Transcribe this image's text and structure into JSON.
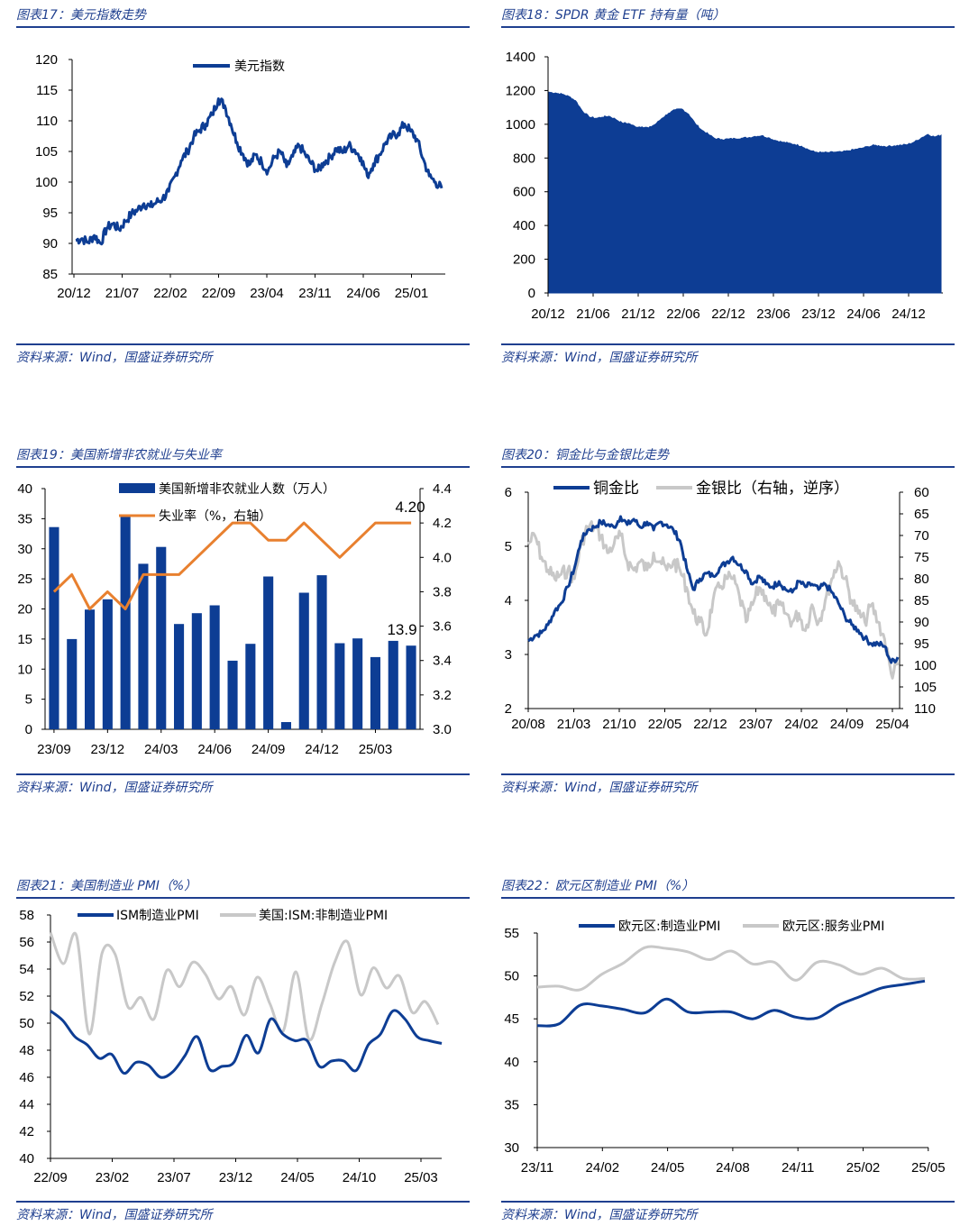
{
  "colors": {
    "brand_blue": "#0d3d94",
    "title_blue": "#1f3f8f",
    "orange": "#e8802f",
    "gray": "#c8c8c8"
  },
  "source_text": "资料来源：Wind，国盛证券研究所",
  "chart_data": [
    {
      "id": "c17",
      "type": "line",
      "title": "图表17：美元指数走势",
      "series": [
        {
          "name": "美元指数",
          "values": [
            90.5,
            90.8,
            90.2,
            91.3,
            90.0,
            92.5,
            93.2,
            92.3,
            93.6,
            94.8,
            95.5,
            96.5,
            96.0,
            96.7,
            97.3,
            98.5,
            101.0,
            103.5,
            105.0,
            107.3,
            108.5,
            109.5,
            111.0,
            113.6,
            112.5,
            109.5,
            106.5,
            104.5,
            102.8,
            104.5,
            103.2,
            101.8,
            104.0,
            105.0,
            102.5,
            104.2,
            106.0,
            104.5,
            103.0,
            101.8,
            103.2,
            104.0,
            105.5,
            104.8,
            106.0,
            105.2,
            104.0,
            101.0,
            103.0,
            104.5,
            106.5,
            107.5,
            108.0,
            109.5,
            108.3,
            107.0,
            103.8,
            101.0,
            100.0,
            99.0
          ]
        }
      ],
      "x_labels": [
        "20/12",
        "21/07",
        "22/02",
        "22/09",
        "23/04",
        "23/11",
        "24/06",
        "25/01"
      ],
      "y_ticks": [
        85,
        90,
        95,
        100,
        105,
        110,
        115,
        120
      ],
      "ylim": [
        85,
        120
      ]
    },
    {
      "id": "c18",
      "type": "area",
      "title": "图表18：SPDR 黄金 ETF 持有量（吨）",
      "series": [
        {
          "name": "SPDR 黄金 ETF 持有量",
          "values": [
            1190,
            1185,
            1178,
            1165,
            1140,
            1080,
            1045,
            1035,
            1042,
            1048,
            1030,
            1008,
            1005,
            985,
            985,
            978,
            1000,
            1035,
            1065,
            1085,
            1090,
            1060,
            1005,
            965,
            940,
            915,
            910,
            912,
            915,
            918,
            920,
            928,
            932,
            920,
            905,
            895,
            888,
            880,
            870,
            850,
            835,
            832,
            832,
            835,
            835,
            842,
            850,
            857,
            868,
            875,
            870,
            868,
            872,
            876,
            880,
            895,
            918,
            940,
            925,
            935
          ]
        }
      ],
      "x_labels": [
        "20/12",
        "21/06",
        "21/12",
        "22/06",
        "22/12",
        "23/06",
        "23/12",
        "24/06",
        "24/12"
      ],
      "y_ticks": [
        0,
        200,
        400,
        600,
        800,
        1000,
        1200,
        1400
      ],
      "ylim": [
        0,
        1400
      ]
    },
    {
      "id": "c19",
      "type": "bar+line",
      "title": "图表19：美国新增非农就业与失业率",
      "categories": [
        "23/09",
        "23/10",
        "23/11",
        "23/12",
        "24/01",
        "24/02",
        "24/03",
        "24/04",
        "24/05",
        "24/06",
        "24/07",
        "24/08",
        "24/09",
        "24/10",
        "24/11",
        "24/12",
        "25/01",
        "25/02",
        "25/03",
        "25/04",
        "25/05"
      ],
      "series": [
        {
          "name": "美国新增非农就业人数（万人）",
          "axis": "left",
          "values": [
            33.6,
            15.0,
            19.9,
            21.6,
            35.3,
            27.5,
            30.3,
            17.5,
            19.3,
            20.6,
            11.4,
            14.2,
            25.4,
            1.2,
            22.7,
            25.6,
            14.3,
            15.1,
            12.0,
            14.7,
            13.9
          ]
        },
        {
          "name": "失业率（%，右轴）",
          "axis": "right",
          "values": [
            3.8,
            3.9,
            3.7,
            3.8,
            3.7,
            3.9,
            3.9,
            3.9,
            4.0,
            4.1,
            4.2,
            4.2,
            4.1,
            4.1,
            4.2,
            4.1,
            4.0,
            4.1,
            4.2,
            4.2,
            4.2
          ]
        }
      ],
      "x_labels": [
        "23/09",
        "23/12",
        "24/03",
        "24/06",
        "24/09",
        "24/12",
        "25/03"
      ],
      "y_ticks": [
        0,
        5,
        10,
        15,
        20,
        25,
        30,
        35,
        40
      ],
      "y2_ticks": [
        "3.0",
        "3.2",
        "3.4",
        "3.6",
        "3.8",
        "4.0",
        "4.2",
        "4.4"
      ],
      "ylim": [
        0,
        40
      ],
      "y2lim": [
        3.0,
        4.4
      ],
      "annotations": [
        "13.9",
        "4.20"
      ]
    },
    {
      "id": "c20",
      "type": "line",
      "title": "图表20：铜金比与金银比走势",
      "series": [
        {
          "name": "铜金比",
          "axis": "left",
          "values": [
            3.25,
            3.35,
            3.4,
            3.55,
            3.8,
            3.95,
            4.25,
            4.6,
            5.1,
            5.3,
            5.35,
            5.45,
            5.4,
            5.35,
            5.55,
            5.4,
            5.5,
            5.35,
            5.45,
            5.3,
            5.45,
            5.4,
            5.3,
            5.1,
            4.6,
            4.2,
            4.4,
            4.5,
            4.45,
            4.6,
            4.7,
            4.8,
            4.65,
            4.55,
            4.3,
            4.45,
            4.3,
            4.25,
            4.35,
            4.2,
            4.15,
            4.35,
            4.25,
            4.3,
            4.2,
            4.3,
            4.15,
            3.95,
            3.7,
            3.55,
            3.45,
            3.3,
            3.2,
            3.2,
            3.15,
            2.85,
            2.95
          ]
        },
        {
          "name": "金银比（右轴，逆序）",
          "axis": "right",
          "values": [
            72,
            70,
            75,
            78,
            80,
            79,
            78,
            80,
            72,
            68,
            68,
            70,
            74,
            72,
            70,
            76,
            78,
            76,
            78,
            74,
            76,
            78,
            76,
            78,
            82,
            88,
            90,
            93,
            85,
            82,
            80,
            80,
            84,
            90,
            86,
            82,
            84,
            88,
            86,
            88,
            90,
            88,
            92,
            86,
            90,
            85,
            80,
            76,
            80,
            85,
            88,
            90,
            86,
            90,
            94,
            102,
            100
          ]
        }
      ],
      "x_labels": [
        "20/08",
        "21/03",
        "21/10",
        "22/05",
        "22/12",
        "23/07",
        "24/02",
        "24/09",
        "25/04"
      ],
      "y_ticks": [
        2,
        3,
        4,
        5,
        6
      ],
      "y2_ticks": [
        60,
        65,
        70,
        75,
        80,
        85,
        90,
        95,
        100,
        105,
        110
      ],
      "ylim": [
        2,
        6
      ],
      "y2lim": [
        60,
        110
      ],
      "y2_inverted": true
    },
    {
      "id": "c21",
      "type": "line",
      "title": "图表21：美国制造业 PMI（%）",
      "series": [
        {
          "name": "ISM制造业PMI",
          "values": [
            50.9,
            50.2,
            49.0,
            48.4,
            47.4,
            47.7,
            46.3,
            47.1,
            46.9,
            46.0,
            46.4,
            47.6,
            49.0,
            46.6,
            46.8,
            47.1,
            49.1,
            47.8,
            50.3,
            49.2,
            48.7,
            48.7,
            46.8,
            47.2,
            47.2,
            46.5,
            48.4,
            49.2,
            50.9,
            50.3,
            49.0,
            48.7,
            48.5
          ]
        },
        {
          "name": "美国:ISM:非制造业PMI",
          "values": [
            56.7,
            54.4,
            56.5,
            49.2,
            55.2,
            55.1,
            51.2,
            51.9,
            50.3,
            53.9,
            52.7,
            54.5,
            53.6,
            51.8,
            52.7,
            50.6,
            53.4,
            51.4,
            49.4,
            53.8,
            48.8,
            51.4,
            54.5,
            56.0,
            52.1,
            54.1,
            52.6,
            53.5,
            50.8,
            51.6,
            49.9
          ]
        }
      ],
      "x_labels": [
        "22/09",
        "23/02",
        "23/07",
        "23/12",
        "24/05",
        "24/10",
        "25/03"
      ],
      "y_ticks": [
        40,
        42,
        44,
        46,
        48,
        50,
        52,
        54,
        56,
        58
      ],
      "ylim": [
        40,
        58
      ]
    },
    {
      "id": "c22",
      "type": "line",
      "title": "图表22：欧元区制造业 PMI（%）",
      "series": [
        {
          "name": "欧元区:制造业PMI",
          "values": [
            44.2,
            44.4,
            46.6,
            46.5,
            46.1,
            45.7,
            47.3,
            45.8,
            45.8,
            45.8,
            45.0,
            46.0,
            45.2,
            45.1,
            46.6,
            47.6,
            48.6,
            49.0,
            49.4
          ]
        },
        {
          "name": "欧元区:服务业PMI",
          "values": [
            48.7,
            48.8,
            48.4,
            50.2,
            51.5,
            53.3,
            53.2,
            52.8,
            51.9,
            52.9,
            51.4,
            51.6,
            49.5,
            51.6,
            51.3,
            50.2,
            50.9,
            49.7,
            49.7
          ]
        }
      ],
      "x_labels": [
        "23/11",
        "24/02",
        "24/05",
        "24/08",
        "24/11",
        "25/02",
        "25/05"
      ],
      "y_ticks": [
        30,
        35,
        40,
        45,
        50,
        55
      ],
      "ylim": [
        30,
        55
      ]
    }
  ]
}
